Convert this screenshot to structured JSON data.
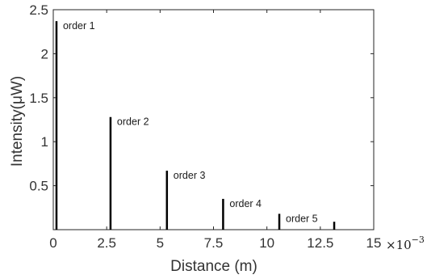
{
  "chart_data": {
    "type": "bar",
    "xlabel": "Distance (m)",
    "ylabel": "Intensity(μW)",
    "x_multiplier_label": "×10",
    "x_multiplier_exponent": "−3",
    "xlim": [
      0,
      15
    ],
    "ylim": [
      0,
      2.5
    ],
    "x_ticks": [
      0,
      2.5,
      5,
      7.5,
      10,
      12.5,
      15
    ],
    "x_tick_labels": [
      "0",
      "2.5",
      "5",
      "7.5",
      "10",
      "12.5",
      "15"
    ],
    "y_ticks": [
      0.5,
      1,
      1.5,
      2,
      2.5
    ],
    "y_tick_labels": [
      "0.5",
      "1",
      "1.5",
      "2",
      "2.5"
    ],
    "grid": false,
    "bar_color": "#000000",
    "peaks": [
      {
        "x": 0.15,
        "y": 2.37,
        "label": "order 1"
      },
      {
        "x": 2.68,
        "y": 1.28,
        "label": "order 2"
      },
      {
        "x": 5.32,
        "y": 0.67,
        "label": "order 3"
      },
      {
        "x": 7.95,
        "y": 0.35,
        "label": "order 4"
      },
      {
        "x": 10.58,
        "y": 0.18,
        "label": "order 5"
      },
      {
        "x": 13.15,
        "y": 0.09,
        "label": ""
      }
    ]
  }
}
